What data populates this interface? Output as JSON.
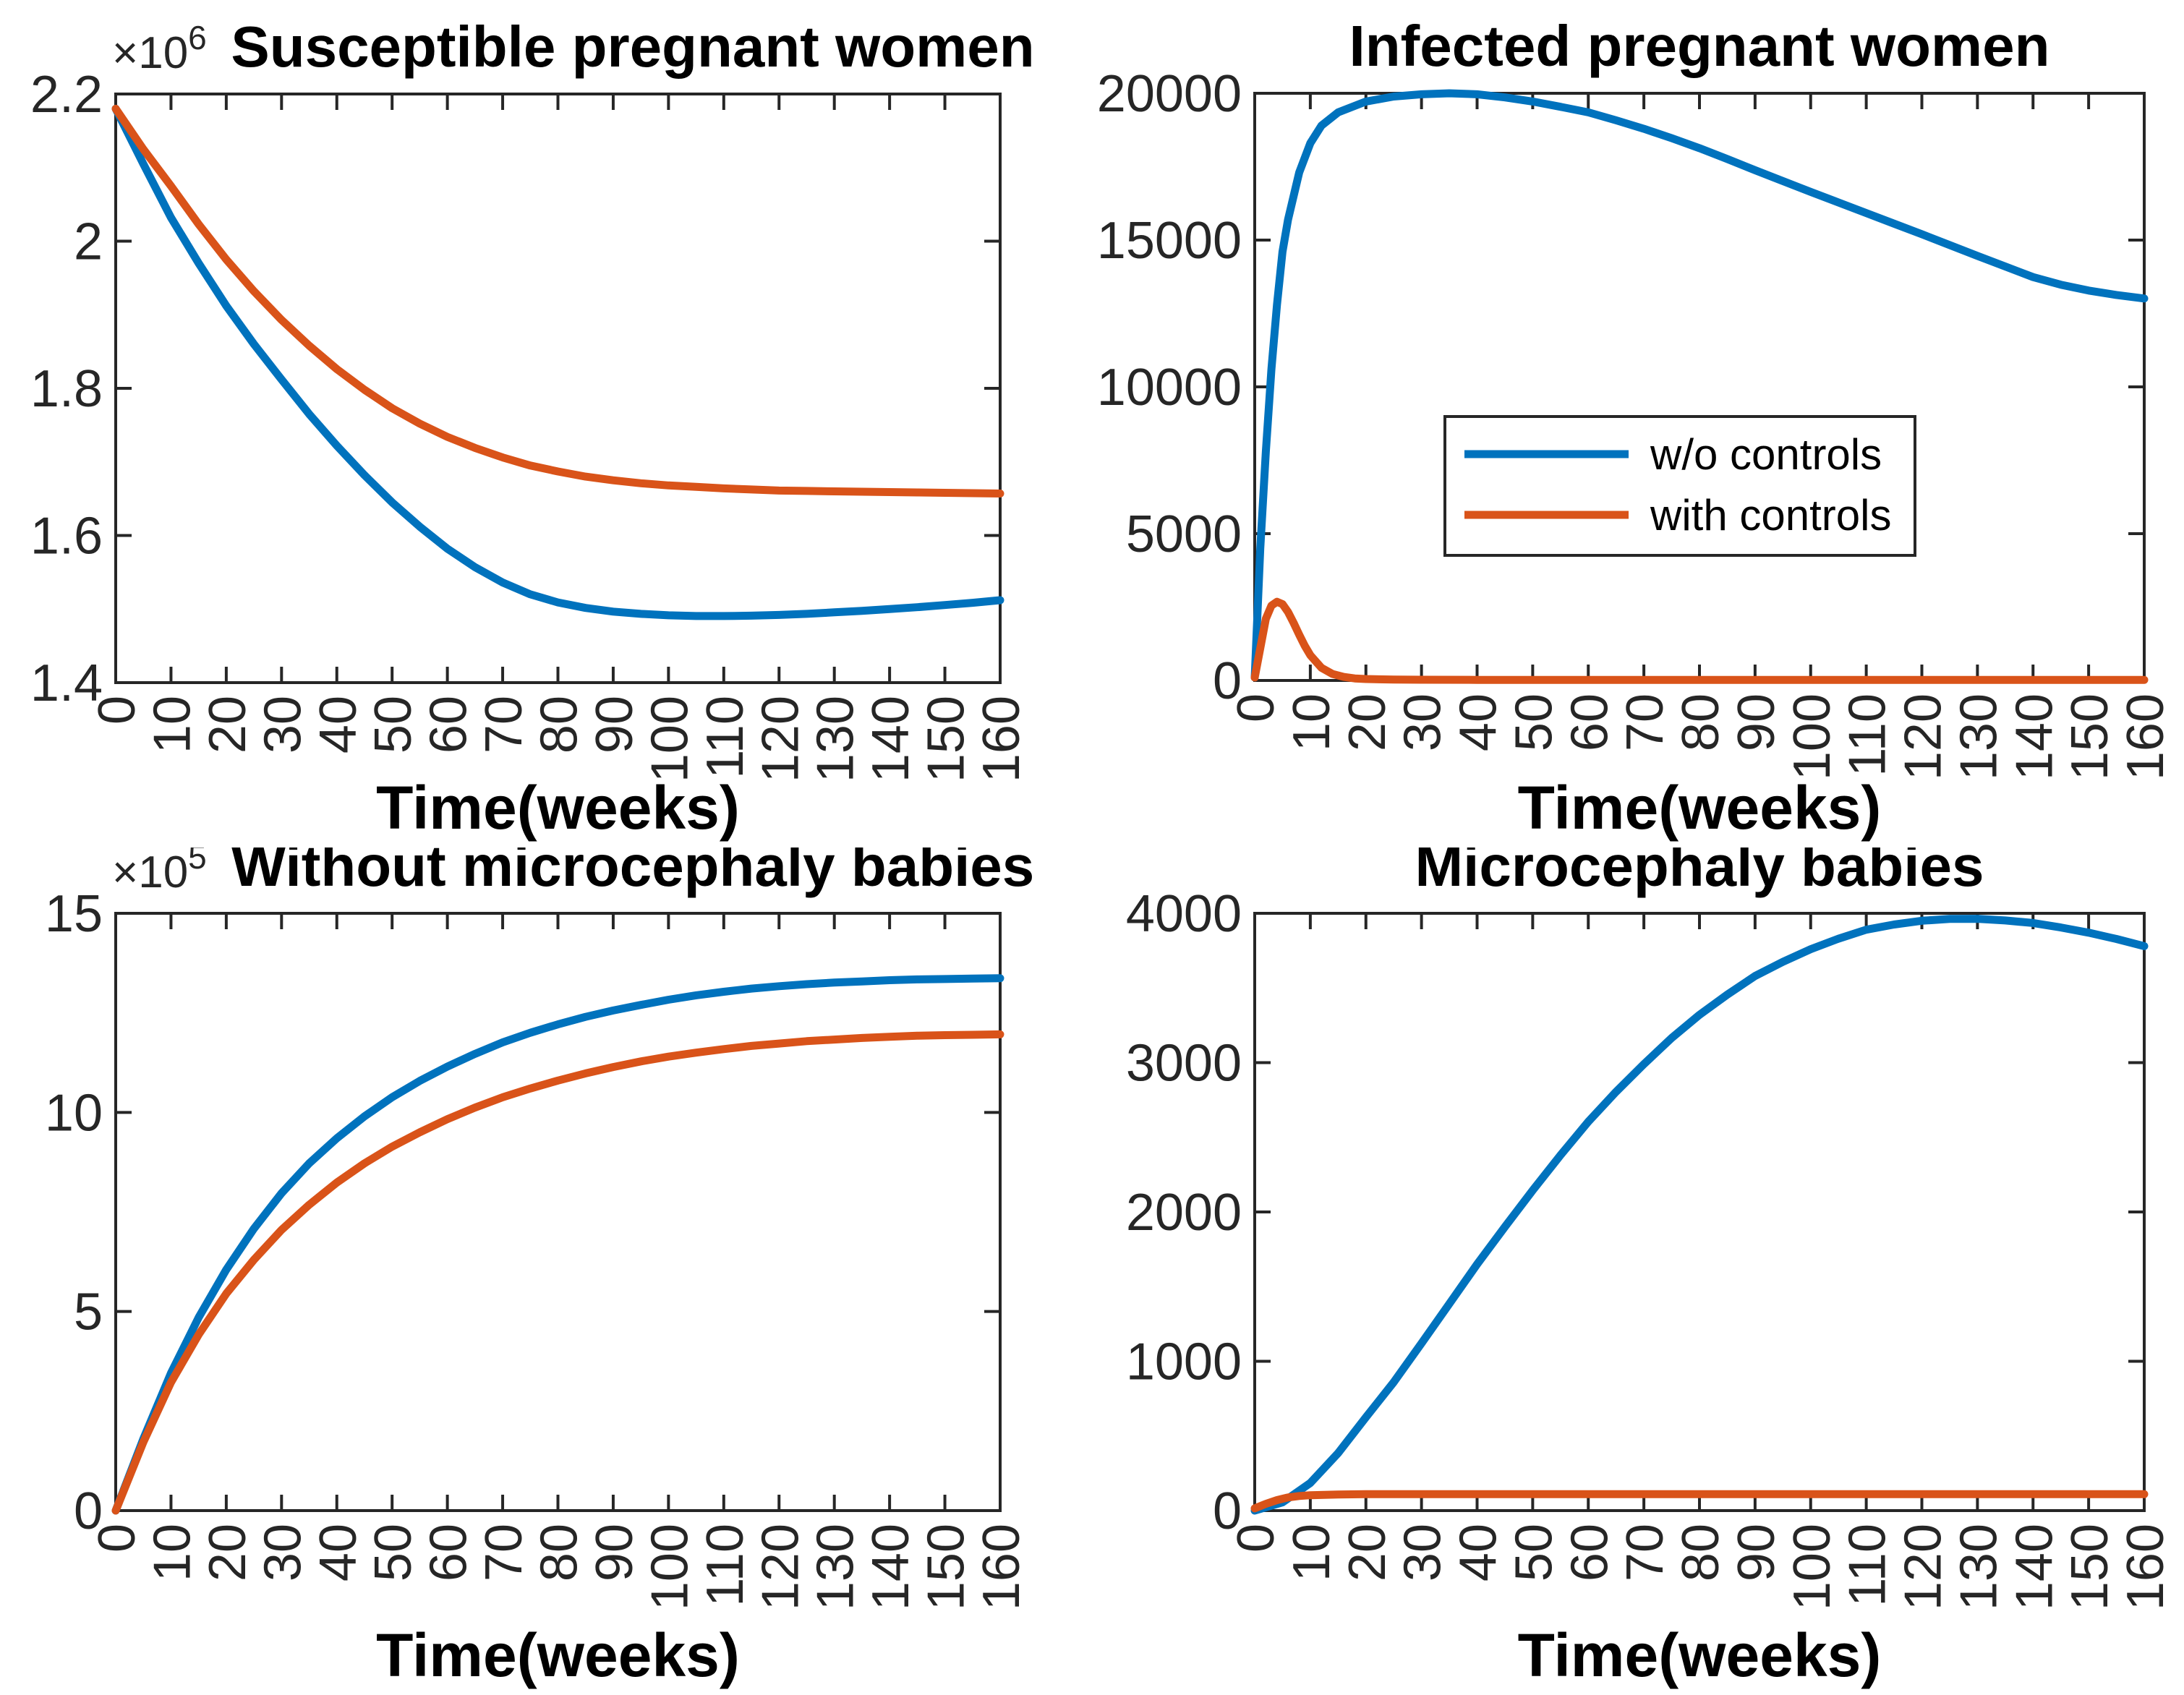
{
  "figure": {
    "background": "#ffffff",
    "axis_color": "#262626",
    "tick_label_color": "#262626",
    "text_color": "#000000"
  },
  "chart_data": [
    {
      "type": "line",
      "title": "Susceptible pregnant women",
      "xlabel": "Time(weeks)",
      "y_exponent_base": "×10",
      "y_exponent_power": "6",
      "xlim": [
        0,
        160
      ],
      "ylim": [
        1.4,
        2.2
      ],
      "grid": false,
      "x_tick_values": [
        0,
        10,
        20,
        30,
        40,
        50,
        60,
        70,
        80,
        90,
        100,
        110,
        120,
        130,
        140,
        150,
        160
      ],
      "x_tick_labels": [
        "0",
        "10",
        "20",
        "30",
        "40",
        "50",
        "60",
        "70",
        "80",
        "90",
        "100",
        "110",
        "120",
        "130",
        "140",
        "150",
        "160"
      ],
      "y_tick_values": [
        1.4,
        1.6,
        1.8,
        2.0,
        2.2
      ],
      "y_tick_labels": [
        "1.4",
        "1.6",
        "1.8",
        "2",
        "2.2"
      ],
      "series": [
        {
          "name": "w/o controls",
          "color": "#0072BD",
          "x": [
            0,
            5,
            10,
            15,
            20,
            25,
            30,
            35,
            40,
            45,
            50,
            55,
            60,
            65,
            70,
            75,
            80,
            85,
            90,
            95,
            100,
            105,
            110,
            115,
            120,
            125,
            130,
            135,
            140,
            145,
            150,
            155,
            160
          ],
          "y": [
            2.18,
            2.105,
            2.032,
            1.97,
            1.912,
            1.86,
            1.812,
            1.765,
            1.722,
            1.682,
            1.645,
            1.612,
            1.582,
            1.557,
            1.536,
            1.52,
            1.509,
            1.5015,
            1.4965,
            1.4935,
            1.4915,
            1.4905,
            1.4905,
            1.491,
            1.492,
            1.4935,
            1.4955,
            1.4975,
            1.5,
            1.5025,
            1.5055,
            1.5085,
            1.512
          ]
        },
        {
          "name": "with controls",
          "color": "#D95319",
          "x": [
            0,
            5,
            10,
            15,
            20,
            25,
            30,
            35,
            40,
            45,
            50,
            55,
            60,
            65,
            70,
            75,
            80,
            85,
            90,
            95,
            100,
            105,
            110,
            115,
            120,
            125,
            130,
            135,
            140,
            145,
            150,
            155,
            160
          ],
          "y": [
            2.18,
            2.125,
            2.075,
            2.023,
            1.975,
            1.932,
            1.893,
            1.858,
            1.826,
            1.798,
            1.773,
            1.752,
            1.734,
            1.719,
            1.706,
            1.695,
            1.687,
            1.68,
            1.675,
            1.671,
            1.668,
            1.666,
            1.664,
            1.6625,
            1.661,
            1.6605,
            1.66,
            1.6595,
            1.659,
            1.6585,
            1.658,
            1.6575,
            1.657
          ]
        }
      ]
    },
    {
      "type": "line",
      "title": "Infected pregnant women",
      "xlabel": "Time(weeks)",
      "xlim": [
        0,
        160
      ],
      "ylim": [
        0,
        20000
      ],
      "grid": false,
      "x_tick_values": [
        0,
        10,
        20,
        30,
        40,
        50,
        60,
        70,
        80,
        90,
        100,
        110,
        120,
        130,
        140,
        150,
        160
      ],
      "x_tick_labels": [
        "0",
        "10",
        "20",
        "30",
        "40",
        "50",
        "60",
        "70",
        "80",
        "90",
        "100",
        "110",
        "120",
        "130",
        "140",
        "150",
        "160"
      ],
      "y_tick_values": [
        0,
        5000,
        10000,
        15000,
        20000
      ],
      "y_tick_labels": [
        "0",
        "5000",
        "10000",
        "15000",
        "20000"
      ],
      "legend": {
        "entries": [
          {
            "label": "w/o controls",
            "color": "#0072BD"
          },
          {
            "label": "with controls",
            "color": "#D95319"
          }
        ]
      },
      "series": [
        {
          "name": "w/o controls",
          "color": "#0072BD",
          "x": [
            0,
            1,
            2,
            3,
            4,
            5,
            6,
            8,
            10,
            12,
            15,
            20,
            25,
            30,
            35,
            40,
            45,
            50,
            55,
            60,
            65,
            70,
            75,
            80,
            85,
            90,
            95,
            100,
            105,
            110,
            115,
            120,
            125,
            130,
            135,
            140,
            145,
            150,
            155,
            160
          ],
          "y": [
            100,
            4500,
            7800,
            10600,
            12800,
            14600,
            15700,
            17300,
            18300,
            18900,
            19350,
            19720,
            19890,
            19965,
            20000,
            19965,
            19860,
            19720,
            19540,
            19350,
            19080,
            18790,
            18470,
            18130,
            17760,
            17380,
            17010,
            16640,
            16280,
            15920,
            15560,
            15200,
            14830,
            14460,
            14100,
            13740,
            13480,
            13280,
            13130,
            13010
          ]
        },
        {
          "name": "with controls",
          "color": "#D95319",
          "x": [
            0,
            1,
            2,
            3,
            4,
            5,
            6,
            7,
            8,
            9,
            10,
            12,
            14,
            16,
            18,
            20,
            25,
            30,
            40,
            60,
            80,
            100,
            120,
            140,
            160
          ],
          "y": [
            100,
            1100,
            2100,
            2550,
            2680,
            2600,
            2330,
            1960,
            1560,
            1180,
            860,
            430,
            220,
            120,
            70,
            50,
            30,
            25,
            20,
            20,
            20,
            20,
            20,
            20,
            20
          ]
        }
      ]
    },
    {
      "type": "line",
      "title": "Without microcephaly babies",
      "xlabel": "Time(weeks)",
      "y_exponent_base": "×10",
      "y_exponent_power": "5",
      "xlim": [
        0,
        160
      ],
      "ylim": [
        0,
        15
      ],
      "grid": false,
      "x_tick_values": [
        0,
        10,
        20,
        30,
        40,
        50,
        60,
        70,
        80,
        90,
        100,
        110,
        120,
        130,
        140,
        150,
        160
      ],
      "x_tick_labels": [
        "0",
        "10",
        "20",
        "30",
        "40",
        "50",
        "60",
        "70",
        "80",
        "90",
        "100",
        "110",
        "120",
        "130",
        "140",
        "150",
        "160"
      ],
      "y_tick_values": [
        0,
        5,
        10,
        15
      ],
      "y_tick_labels": [
        "0",
        "5",
        "10",
        "15"
      ],
      "series": [
        {
          "name": "w/o controls",
          "color": "#0072BD",
          "x": [
            0,
            5,
            10,
            15,
            20,
            25,
            30,
            35,
            40,
            45,
            50,
            55,
            60,
            65,
            70,
            75,
            80,
            85,
            90,
            95,
            100,
            105,
            110,
            115,
            120,
            125,
            130,
            135,
            140,
            145,
            150,
            155,
            160
          ],
          "y": [
            0,
            1.8,
            3.45,
            4.85,
            6.05,
            7.08,
            7.97,
            8.72,
            9.35,
            9.9,
            10.38,
            10.79,
            11.15,
            11.47,
            11.76,
            12.0,
            12.21,
            12.4,
            12.56,
            12.7,
            12.83,
            12.94,
            13.03,
            13.11,
            13.17,
            13.22,
            13.26,
            13.29,
            13.32,
            13.34,
            13.35,
            13.36,
            13.37
          ]
        },
        {
          "name": "with controls",
          "color": "#D95319",
          "x": [
            0,
            5,
            10,
            15,
            20,
            25,
            30,
            35,
            40,
            45,
            50,
            55,
            60,
            65,
            70,
            75,
            80,
            85,
            90,
            95,
            100,
            105,
            110,
            115,
            120,
            125,
            130,
            135,
            140,
            145,
            150,
            155,
            160
          ],
          "y": [
            0,
            1.72,
            3.22,
            4.42,
            5.45,
            6.3,
            7.05,
            7.68,
            8.24,
            8.72,
            9.14,
            9.5,
            9.83,
            10.12,
            10.38,
            10.6,
            10.8,
            10.98,
            11.14,
            11.28,
            11.4,
            11.5,
            11.59,
            11.67,
            11.73,
            11.79,
            11.83,
            11.87,
            11.9,
            11.925,
            11.94,
            11.95,
            11.96
          ]
        }
      ]
    },
    {
      "type": "line",
      "title": "Microcephaly babies",
      "xlabel": "Time(weeks)",
      "xlim": [
        0,
        160
      ],
      "ylim": [
        0,
        4000
      ],
      "grid": false,
      "x_tick_values": [
        0,
        10,
        20,
        30,
        40,
        50,
        60,
        70,
        80,
        90,
        100,
        110,
        120,
        130,
        140,
        150,
        160
      ],
      "x_tick_labels": [
        "0",
        "10",
        "20",
        "30",
        "40",
        "50",
        "60",
        "70",
        "80",
        "90",
        "100",
        "110",
        "120",
        "130",
        "140",
        "150",
        "160"
      ],
      "y_tick_values": [
        0,
        1000,
        2000,
        3000,
        4000
      ],
      "y_tick_labels": [
        "0",
        "1000",
        "2000",
        "3000",
        "4000"
      ],
      "series": [
        {
          "name": "w/o controls",
          "color": "#0072BD",
          "x": [
            0,
            5,
            10,
            15,
            20,
            25,
            30,
            35,
            40,
            45,
            50,
            55,
            60,
            65,
            70,
            75,
            80,
            85,
            90,
            95,
            100,
            105,
            110,
            115,
            120,
            125,
            130,
            135,
            140,
            145,
            150,
            155,
            160
          ],
          "y": [
            0,
            55,
            185,
            385,
            625,
            860,
            1120,
            1385,
            1650,
            1900,
            2145,
            2380,
            2605,
            2805,
            2990,
            3165,
            3320,
            3455,
            3580,
            3675,
            3760,
            3830,
            3890,
            3925,
            3950,
            3962,
            3963,
            3952,
            3935,
            3905,
            3870,
            3828,
            3780
          ]
        },
        {
          "name": "with controls",
          "color": "#D95319",
          "x": [
            0,
            2,
            4,
            6,
            8,
            10,
            15,
            20,
            30,
            40,
            60,
            80,
            100,
            120,
            140,
            160
          ],
          "y": [
            15,
            45,
            70,
            88,
            98,
            103,
            108,
            110,
            110,
            110,
            110,
            110,
            110,
            110,
            110,
            110
          ]
        }
      ]
    }
  ]
}
